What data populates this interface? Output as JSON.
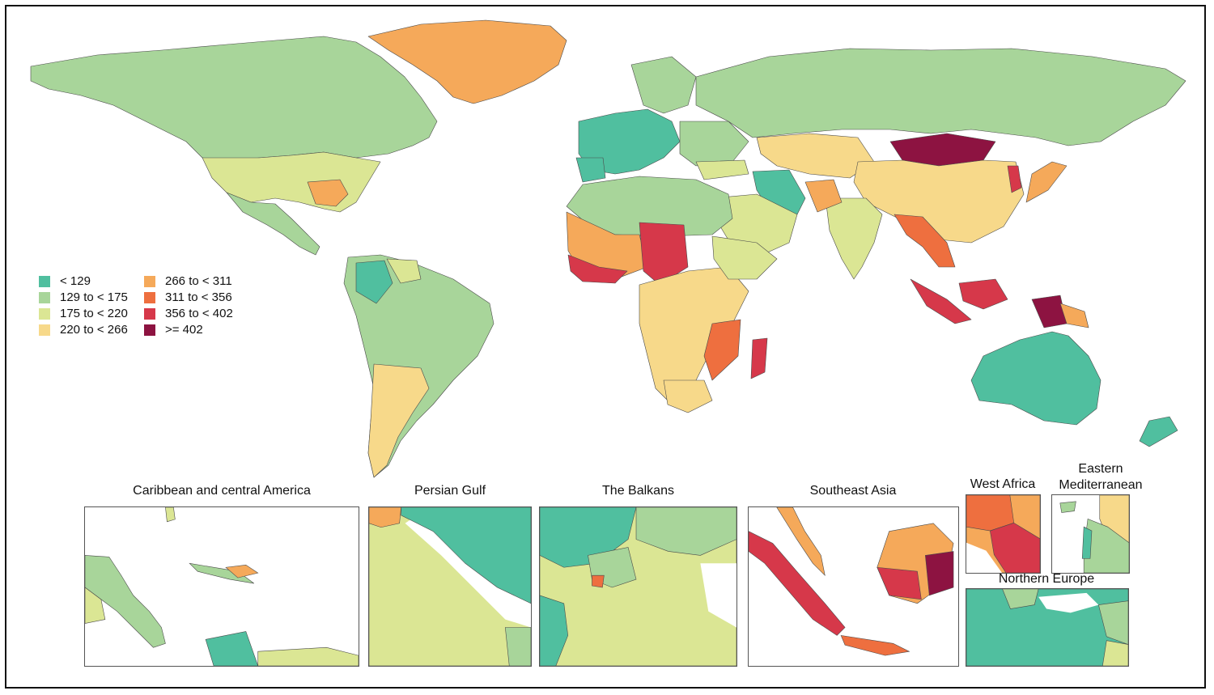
{
  "legend": {
    "items": [
      {
        "label": "< 129",
        "color": "#50bf9f"
      },
      {
        "label": "266 to < 311",
        "color": "#f5a95a"
      },
      {
        "label": "129 to < 175",
        "color": "#a8d59a"
      },
      {
        "label": "311 to < 356",
        "color": "#ee6f3f"
      },
      {
        "label": "175 to < 220",
        "color": "#dbe694"
      },
      {
        "label": "356 to < 402",
        "color": "#d6384a"
      },
      {
        "label": "220 to < 266",
        "color": "#f7d98a"
      },
      {
        "label": ">= 402",
        "color": "#8d1341"
      }
    ]
  },
  "insets": [
    {
      "title": "Caribbean and central America"
    },
    {
      "title": "Persian Gulf"
    },
    {
      "title": "The Balkans"
    },
    {
      "title": "Southeast Asia"
    },
    {
      "title": "West Africa"
    },
    {
      "title": "Eastern Mediterranean"
    },
    {
      "title": "Northern Europe"
    }
  ],
  "colors": {
    "ocean": "#ffffff",
    "border": "#555555"
  }
}
